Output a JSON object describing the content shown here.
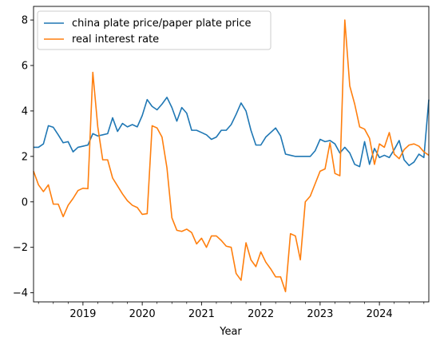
{
  "chart_data": {
    "type": "line",
    "xlabel": "Year",
    "ylabel": "",
    "ylim": [
      -4.4,
      8.6
    ],
    "xlim": [
      "2018-03",
      "2024-11"
    ],
    "yticks": [
      -4,
      -2,
      0,
      2,
      4,
      6,
      8
    ],
    "xticks": [
      "2019",
      "2020",
      "2021",
      "2022",
      "2023",
      "2024"
    ],
    "grid": false,
    "legend_position": "top-left",
    "colors": {
      "series0": "#1f77b4",
      "series1": "#ff7f0e"
    },
    "x": [
      "2018-03",
      "2018-04",
      "2018-05",
      "2018-06",
      "2018-07",
      "2018-08",
      "2018-09",
      "2018-10",
      "2018-11",
      "2018-12",
      "2019-01",
      "2019-02",
      "2019-03",
      "2019-04",
      "2019-05",
      "2019-06",
      "2019-07",
      "2019-08",
      "2019-09",
      "2019-10",
      "2019-11",
      "2019-12",
      "2020-01",
      "2020-02",
      "2020-03",
      "2020-04",
      "2020-05",
      "2020-06",
      "2020-07",
      "2020-08",
      "2020-09",
      "2020-10",
      "2020-11",
      "2020-12",
      "2021-01",
      "2021-02",
      "2021-03",
      "2021-04",
      "2021-05",
      "2021-06",
      "2021-07",
      "2021-08",
      "2021-09",
      "2021-10",
      "2021-11",
      "2021-12",
      "2022-01",
      "2022-02",
      "2022-03",
      "2022-04",
      "2022-05",
      "2022-06",
      "2022-07",
      "2022-08",
      "2022-09",
      "2022-10",
      "2022-11",
      "2022-12",
      "2023-01",
      "2023-02",
      "2023-03",
      "2023-04",
      "2023-05",
      "2023-06",
      "2023-07",
      "2023-08",
      "2023-09",
      "2023-10",
      "2023-11",
      "2023-12",
      "2024-01",
      "2024-02",
      "2024-03",
      "2024-04",
      "2024-05",
      "2024-06",
      "2024-07",
      "2024-08",
      "2024-09",
      "2024-10",
      "2024-11"
    ],
    "series": [
      {
        "name": "china plate price/paper plate price",
        "values": [
          2.4,
          2.4,
          2.55,
          3.35,
          3.28,
          2.95,
          2.6,
          2.65,
          2.2,
          2.4,
          2.45,
          2.5,
          3.0,
          2.9,
          2.95,
          3.0,
          3.7,
          3.1,
          3.45,
          3.3,
          3.4,
          3.3,
          3.8,
          4.5,
          4.2,
          4.05,
          4.3,
          4.6,
          4.15,
          3.55,
          4.15,
          3.9,
          3.15,
          3.15,
          3.05,
          2.95,
          2.75,
          2.85,
          3.15,
          3.15,
          3.4,
          3.85,
          4.35,
          4.0,
          3.15,
          2.5,
          2.5,
          2.85,
          3.05,
          3.25,
          2.9,
          2.1,
          2.05,
          2.0,
          2.0,
          2.0,
          2.0,
          2.25,
          2.75,
          2.65,
          2.7,
          2.55,
          2.15,
          2.4,
          2.15,
          1.65,
          1.55,
          2.65,
          1.65,
          2.35,
          1.95,
          2.05,
          1.95,
          2.3,
          2.7,
          1.85,
          1.6,
          1.75,
          2.1,
          1.95,
          4.5
        ]
      },
      {
        "name": "real interest rate",
        "values": [
          1.35,
          0.75,
          0.45,
          0.75,
          -0.1,
          -0.1,
          -0.65,
          -0.15,
          0.15,
          0.5,
          0.6,
          0.58,
          5.7,
          3.3,
          1.85,
          1.85,
          1.05,
          0.7,
          0.35,
          0.05,
          -0.15,
          -0.25,
          -0.55,
          -0.52,
          3.35,
          3.25,
          2.85,
          1.5,
          -0.7,
          -1.25,
          -1.3,
          -1.2,
          -1.35,
          -1.85,
          -1.6,
          -2.0,
          -1.5,
          -1.5,
          -1.7,
          -1.95,
          -2.0,
          -3.15,
          -3.45,
          -1.8,
          -2.55,
          -2.85,
          -2.2,
          -2.65,
          -2.95,
          -3.3,
          -3.3,
          -3.95,
          -1.4,
          -1.5,
          -2.55,
          0.0,
          0.25,
          0.8,
          1.35,
          1.45,
          2.6,
          1.25,
          1.15,
          8.0,
          5.1,
          4.3,
          3.3,
          3.2,
          2.8,
          1.65,
          2.55,
          2.4,
          3.05,
          2.1,
          1.9,
          2.3,
          2.5,
          2.55,
          2.45,
          2.2,
          2.05
        ]
      }
    ]
  }
}
